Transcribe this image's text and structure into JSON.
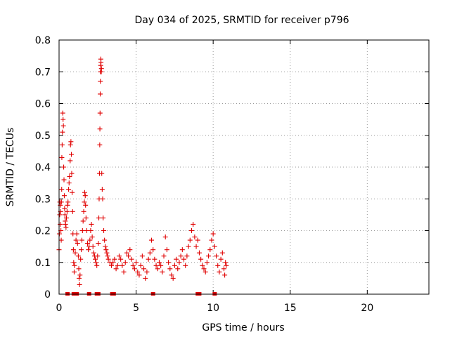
{
  "chart_data": {
    "type": "scatter",
    "title": "Day 034 of 2025, SRMTID for receiver p796",
    "xlabel": "GPS time / hours",
    "ylabel": "SRMTID / TECUs",
    "xlim": [
      0,
      24
    ],
    "ylim": [
      0,
      0.8
    ],
    "xticks": [
      "0",
      "5",
      "10",
      "15",
      "20"
    ],
    "yticks": [
      "0",
      "0.1",
      "0.2",
      "0.3",
      "0.4",
      "0.5",
      "0.6",
      "0.7",
      "0.8"
    ],
    "grid": true,
    "legend": "none",
    "marker": "+",
    "colors": {
      "series": "#e00000"
    },
    "series": [
      {
        "points": [
          [
            0.0,
            0.14
          ],
          [
            0.02,
            0.19
          ],
          [
            0.04,
            0.25
          ],
          [
            0.05,
            0.29
          ],
          [
            0.07,
            0.22
          ],
          [
            0.08,
            0.28
          ],
          [
            0.1,
            0.26
          ],
          [
            0.12,
            0.2
          ],
          [
            0.14,
            0.17
          ],
          [
            0.15,
            0.29
          ],
          [
            0.17,
            0.33
          ],
          [
            0.18,
            0.43
          ],
          [
            0.2,
            0.47
          ],
          [
            0.22,
            0.51
          ],
          [
            0.24,
            0.57
          ],
          [
            0.26,
            0.55
          ],
          [
            0.28,
            0.53
          ],
          [
            0.3,
            0.4
          ],
          [
            0.32,
            0.36
          ],
          [
            0.34,
            0.31
          ],
          [
            0.36,
            0.27
          ],
          [
            0.38,
            0.25
          ],
          [
            0.4,
            0.23
          ],
          [
            0.42,
            0.22
          ],
          [
            0.45,
            0.21
          ],
          [
            0.48,
            0.24
          ],
          [
            0.52,
            0.26
          ],
          [
            0.55,
            0.28
          ],
          [
            0.58,
            0.29
          ],
          [
            0.62,
            0.33
          ],
          [
            0.65,
            0.35
          ],
          [
            0.68,
            0.37
          ],
          [
            0.72,
            0.42
          ],
          [
            0.74,
            0.47
          ],
          [
            0.77,
            0.48
          ],
          [
            0.8,
            0.44
          ],
          [
            0.82,
            0.38
          ],
          [
            0.85,
            0.32
          ],
          [
            0.88,
            0.26
          ],
          [
            0.9,
            0.19
          ],
          [
            0.93,
            0.14
          ],
          [
            0.95,
            0.1
          ],
          [
            0.98,
            0.07
          ],
          [
            1.0,
            0.09
          ],
          [
            1.05,
            0.13
          ],
          [
            1.1,
            0.17
          ],
          [
            1.15,
            0.19
          ],
          [
            1.2,
            0.16
          ],
          [
            1.25,
            0.12
          ],
          [
            1.28,
            0.08
          ],
          [
            1.3,
            0.05
          ],
          [
            1.33,
            0.03
          ],
          [
            1.36,
            0.06
          ],
          [
            1.4,
            0.11
          ],
          [
            1.44,
            0.14
          ],
          [
            1.48,
            0.17
          ],
          [
            1.52,
            0.2
          ],
          [
            1.56,
            0.23
          ],
          [
            1.6,
            0.26
          ],
          [
            1.64,
            0.29
          ],
          [
            1.66,
            0.32
          ],
          [
            1.7,
            0.31
          ],
          [
            1.72,
            0.28
          ],
          [
            1.75,
            0.24
          ],
          [
            1.8,
            0.2
          ],
          [
            1.85,
            0.16
          ],
          [
            1.9,
            0.14
          ],
          [
            1.95,
            0.15
          ],
          [
            2.0,
            0.17
          ],
          [
            2.05,
            0.2
          ],
          [
            2.1,
            0.22
          ],
          [
            2.15,
            0.18
          ],
          [
            2.2,
            0.15
          ],
          [
            2.25,
            0.13
          ],
          [
            2.3,
            0.12
          ],
          [
            2.35,
            0.11
          ],
          [
            2.4,
            0.1
          ],
          [
            2.45,
            0.09
          ],
          [
            2.5,
            0.12
          ],
          [
            2.55,
            0.16
          ],
          [
            2.58,
            0.24
          ],
          [
            2.6,
            0.3
          ],
          [
            2.62,
            0.38
          ],
          [
            2.64,
            0.47
          ],
          [
            2.65,
            0.52
          ],
          [
            2.66,
            0.57
          ],
          [
            2.67,
            0.63
          ],
          [
            2.68,
            0.67
          ],
          [
            2.69,
            0.7
          ],
          [
            2.7,
            0.72
          ],
          [
            2.71,
            0.74
          ],
          [
            2.72,
            0.73
          ],
          [
            2.74,
            0.7
          ],
          [
            2.75,
            0.71
          ],
          [
            2.77,
            0.38
          ],
          [
            2.8,
            0.33
          ],
          [
            2.83,
            0.3
          ],
          [
            2.86,
            0.24
          ],
          [
            2.9,
            0.2
          ],
          [
            2.95,
            0.17
          ],
          [
            3.0,
            0.15
          ],
          [
            3.05,
            0.14
          ],
          [
            3.1,
            0.13
          ],
          [
            3.15,
            0.12
          ],
          [
            3.2,
            0.11
          ],
          [
            3.3,
            0.1
          ],
          [
            3.4,
            0.09
          ],
          [
            3.5,
            0.1
          ],
          [
            3.6,
            0.11
          ],
          [
            3.7,
            0.08
          ],
          [
            3.8,
            0.09
          ],
          [
            3.9,
            0.12
          ],
          [
            4.0,
            0.11
          ],
          [
            4.1,
            0.09
          ],
          [
            4.2,
            0.07
          ],
          [
            4.3,
            0.1
          ],
          [
            4.4,
            0.13
          ],
          [
            4.5,
            0.12
          ],
          [
            4.6,
            0.14
          ],
          [
            4.7,
            0.11
          ],
          [
            4.8,
            0.09
          ],
          [
            4.9,
            0.08
          ],
          [
            5.0,
            0.1
          ],
          [
            5.1,
            0.07
          ],
          [
            5.2,
            0.06
          ],
          [
            5.3,
            0.09
          ],
          [
            5.4,
            0.12
          ],
          [
            5.5,
            0.08
          ],
          [
            5.6,
            0.05
          ],
          [
            5.7,
            0.07
          ],
          [
            5.8,
            0.11
          ],
          [
            5.9,
            0.13
          ],
          [
            6.0,
            0.17
          ],
          [
            6.1,
            0.14
          ],
          [
            6.2,
            0.11
          ],
          [
            6.3,
            0.09
          ],
          [
            6.4,
            0.08
          ],
          [
            6.5,
            0.1
          ],
          [
            6.6,
            0.09
          ],
          [
            6.7,
            0.07
          ],
          [
            6.8,
            0.12
          ],
          [
            6.9,
            0.18
          ],
          [
            7.0,
            0.14
          ],
          [
            7.1,
            0.1
          ],
          [
            7.2,
            0.08
          ],
          [
            7.3,
            0.06
          ],
          [
            7.4,
            0.05
          ],
          [
            7.5,
            0.09
          ],
          [
            7.6,
            0.11
          ],
          [
            7.7,
            0.08
          ],
          [
            7.8,
            0.1
          ],
          [
            7.9,
            0.12
          ],
          [
            8.0,
            0.14
          ],
          [
            8.1,
            0.11
          ],
          [
            8.2,
            0.09
          ],
          [
            8.3,
            0.12
          ],
          [
            8.4,
            0.15
          ],
          [
            8.5,
            0.17
          ],
          [
            8.6,
            0.2
          ],
          [
            8.7,
            0.22
          ],
          [
            8.8,
            0.18
          ],
          [
            8.9,
            0.15
          ],
          [
            9.0,
            0.17
          ],
          [
            9.1,
            0.13
          ],
          [
            9.2,
            0.11
          ],
          [
            9.3,
            0.09
          ],
          [
            9.4,
            0.08
          ],
          [
            9.5,
            0.07
          ],
          [
            9.6,
            0.1
          ],
          [
            9.7,
            0.12
          ],
          [
            9.8,
            0.14
          ],
          [
            9.9,
            0.17
          ],
          [
            10.0,
            0.19
          ],
          [
            10.1,
            0.15
          ],
          [
            10.2,
            0.12
          ],
          [
            10.3,
            0.09
          ],
          [
            10.4,
            0.07
          ],
          [
            10.5,
            0.11
          ],
          [
            10.6,
            0.13
          ],
          [
            10.7,
            0.08
          ],
          [
            10.75,
            0.06
          ],
          [
            10.8,
            0.1
          ],
          [
            10.85,
            0.09
          ]
        ]
      }
    ],
    "baseline_markers_x": [
      0.55,
      0.95,
      1.05,
      1.15,
      1.95,
      2.45,
      2.55,
      3.45,
      3.55,
      6.1,
      9.0,
      9.1,
      10.1
    ]
  }
}
